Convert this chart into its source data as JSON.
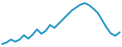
{
  "x": [
    0,
    1,
    2,
    3,
    4,
    5,
    6,
    7,
    8,
    9,
    10,
    11,
    12,
    13,
    14,
    15,
    16,
    17,
    18,
    19,
    20,
    21,
    22,
    23,
    24,
    25,
    26,
    27
  ],
  "y": [
    72.0,
    72.5,
    73.5,
    72.8,
    73.5,
    75.0,
    73.8,
    75.2,
    77.0,
    75.5,
    76.5,
    78.5,
    77.5,
    79.0,
    80.5,
    82.0,
    83.5,
    84.5,
    85.5,
    86.0,
    85.2,
    84.0,
    82.5,
    80.0,
    77.5,
    75.5,
    74.8,
    76.0
  ],
  "line_color": "#2196c4",
  "linewidth": 1.3,
  "background_color": "#ffffff"
}
